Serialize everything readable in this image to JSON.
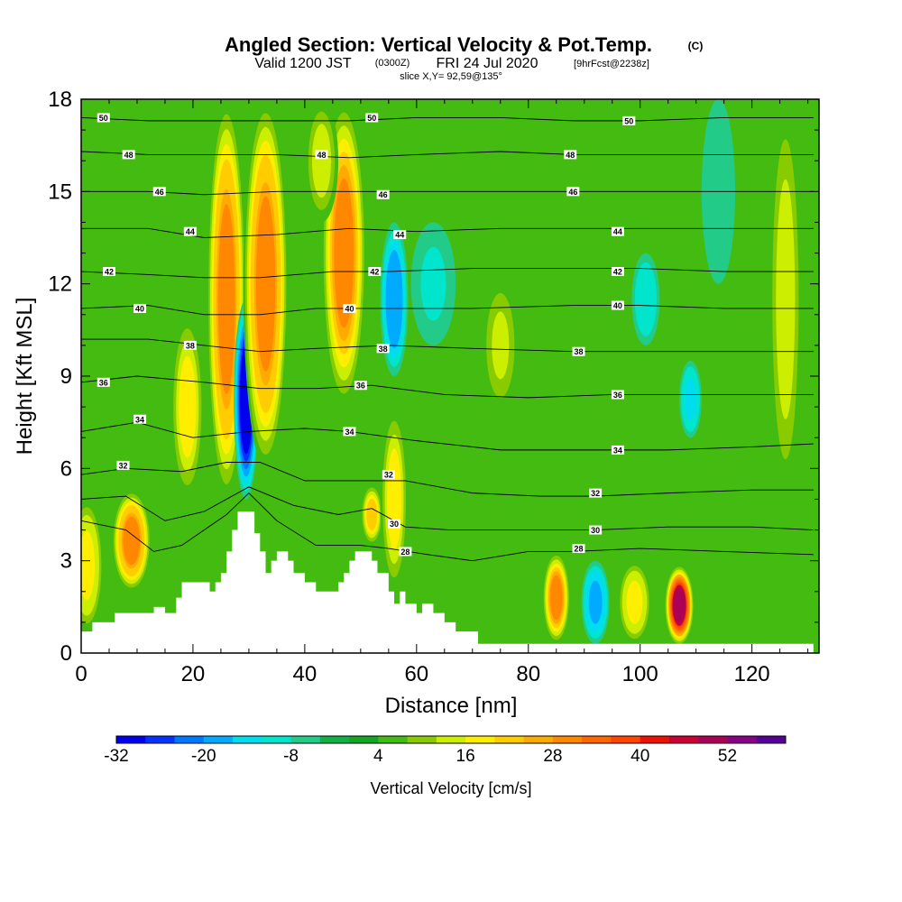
{
  "chart_data": {
    "type": "heatmap",
    "title": "Angled Section: Vertical Velocity & Pot.Temp.",
    "title_unit": "(C)",
    "subtitle_parts": [
      "Valid 1200 JST",
      "(0300Z)",
      "FRI 24 Jul 2020",
      "[9hrFcst@2238z]"
    ],
    "slice_label": "slice X,Y= 92,59@135°",
    "xlabel": "Distance [nm]",
    "ylabel": "Height [Kft MSL]",
    "xlim": [
      0,
      132
    ],
    "ylim": [
      0,
      18
    ],
    "x_ticks": [
      "0",
      "20",
      "40",
      "60",
      "80",
      "100",
      "120"
    ],
    "y_ticks": [
      "0",
      "3",
      "6",
      "9",
      "12",
      "15",
      "18"
    ],
    "grid": false,
    "colorbar": {
      "title": "Vertical Velocity [cm/s]",
      "levels": [
        -32,
        -28,
        -24,
        -20,
        -16,
        -12,
        -8,
        -4,
        0,
        4,
        8,
        12,
        16,
        20,
        24,
        28,
        32,
        36,
        40,
        44,
        48,
        52,
        56
      ],
      "colors": [
        "#0000ee",
        "#0033ff",
        "#0077ff",
        "#00aaff",
        "#00ddee",
        "#00e5cc",
        "#22cc88",
        "#11b044",
        "#11a722",
        "#44bb11",
        "#88cc00",
        "#ccee00",
        "#ffee00",
        "#ffcc00",
        "#ffaa00",
        "#ff8800",
        "#ff6600",
        "#ff4400",
        "#ee1100",
        "#cc0033",
        "#aa0055",
        "#880088",
        "#550099"
      ],
      "tick_labels": [
        "-32",
        "-20",
        "-8",
        "4",
        "16",
        "28",
        "40",
        "52"
      ],
      "tick_values": [
        -32,
        -20,
        -8,
        4,
        16,
        28,
        40,
        52
      ]
    },
    "vertical_velocity_columns": [
      {
        "x": 1,
        "peak": 18,
        "base": 0.7,
        "top": 5,
        "width": 3
      },
      {
        "x": 9,
        "peak": 30,
        "base": 2,
        "top": 5.3,
        "width": 3.5
      },
      {
        "x": 19,
        "peak": 16,
        "base": 5,
        "top": 11,
        "width": 3
      },
      {
        "x": 26,
        "peak": 30,
        "base": 5,
        "top": 18,
        "width": 3.5
      },
      {
        "x": 29.5,
        "peak": -32,
        "base": 5,
        "top": 11.5,
        "width": 2.2
      },
      {
        "x": 33,
        "peak": 30,
        "base": 6,
        "top": 18,
        "width": 4
      },
      {
        "x": 47,
        "peak": 28,
        "base": 8,
        "top": 18,
        "width": 4
      },
      {
        "x": 52,
        "peak": 20,
        "base": 3.5,
        "top": 5.5,
        "width": 2
      },
      {
        "x": 56,
        "peak": -20,
        "base": 9,
        "top": 14,
        "width": 2.5
      },
      {
        "x": 56,
        "peak": 16,
        "base": 2,
        "top": 8,
        "width": 2.5
      },
      {
        "x": 43,
        "peak": 12,
        "base": 14,
        "top": 18,
        "width": 3
      },
      {
        "x": 63,
        "peak": -10,
        "base": 10,
        "top": 14,
        "width": 4
      },
      {
        "x": 75,
        "peak": 14,
        "base": 8,
        "top": 12,
        "width": 3
      },
      {
        "x": 85,
        "peak": 28,
        "base": 0.3,
        "top": 3.3,
        "width": 2.5
      },
      {
        "x": 92,
        "peak": -18,
        "base": 0.3,
        "top": 3,
        "width": 2.5
      },
      {
        "x": 99,
        "peak": 18,
        "base": 0.3,
        "top": 3,
        "width": 3
      },
      {
        "x": 107,
        "peak": 50,
        "base": 0.3,
        "top": 2.8,
        "width": 2.5
      },
      {
        "x": 109,
        "peak": -14,
        "base": 7,
        "top": 9.5,
        "width": 2
      },
      {
        "x": 101,
        "peak": -12,
        "base": 10,
        "top": 13,
        "width": 2.5
      },
      {
        "x": 126,
        "peak": 12,
        "base": 5,
        "top": 18,
        "width": 3
      },
      {
        "x": 114,
        "peak": -8,
        "base": 12,
        "top": 18,
        "width": 3
      }
    ],
    "terrain": [
      [
        0,
        0.7
      ],
      [
        2,
        0.7
      ],
      [
        2,
        1
      ],
      [
        6,
        1
      ],
      [
        6,
        1.3
      ],
      [
        13,
        1.3
      ],
      [
        13,
        1.5
      ],
      [
        15,
        1.5
      ],
      [
        15,
        1.3
      ],
      [
        17,
        1.3
      ],
      [
        17,
        1.8
      ],
      [
        18,
        1.8
      ],
      [
        18,
        2.3
      ],
      [
        23,
        2.3
      ],
      [
        23,
        2.0
      ],
      [
        24,
        2.0
      ],
      [
        24,
        2.3
      ],
      [
        25,
        2.3
      ],
      [
        25,
        2.6
      ],
      [
        26,
        2.6
      ],
      [
        26,
        3.3
      ],
      [
        27,
        3.3
      ],
      [
        27,
        4.0
      ],
      [
        28,
        4.0
      ],
      [
        28,
        4.6
      ],
      [
        31,
        4.6
      ],
      [
        31,
        3.9
      ],
      [
        32,
        3.9
      ],
      [
        32,
        3.3
      ],
      [
        33,
        3.3
      ],
      [
        33,
        2.6
      ],
      [
        34,
        2.6
      ],
      [
        34,
        3.0
      ],
      [
        35,
        3.0
      ],
      [
        35,
        3.3
      ],
      [
        37,
        3.3
      ],
      [
        37,
        3.0
      ],
      [
        38,
        3.0
      ],
      [
        38,
        2.6
      ],
      [
        40,
        2.6
      ],
      [
        40,
        2.3
      ],
      [
        42,
        2.3
      ],
      [
        42,
        2.0
      ],
      [
        46,
        2.0
      ],
      [
        46,
        2.3
      ],
      [
        47,
        2.3
      ],
      [
        47,
        2.6
      ],
      [
        48,
        2.6
      ],
      [
        48,
        3.0
      ],
      [
        49,
        3.0
      ],
      [
        49,
        3.3
      ],
      [
        52,
        3.3
      ],
      [
        52,
        3.0
      ],
      [
        53,
        3.0
      ],
      [
        53,
        2.6
      ],
      [
        55,
        2.6
      ],
      [
        55,
        2.0
      ],
      [
        56,
        2.0
      ],
      [
        56,
        1.6
      ],
      [
        57,
        1.6
      ],
      [
        57,
        2.0
      ],
      [
        58,
        2.0
      ],
      [
        58,
        1.6
      ],
      [
        60,
        1.6
      ],
      [
        60,
        1.3
      ],
      [
        61,
        1.3
      ],
      [
        61,
        1.6
      ],
      [
        63,
        1.6
      ],
      [
        63,
        1.3
      ],
      [
        65,
        1.3
      ],
      [
        65,
        1.0
      ],
      [
        67,
        1.0
      ],
      [
        67,
        0.7
      ],
      [
        71,
        0.7
      ],
      [
        71,
        0.3
      ],
      [
        131,
        0.3
      ],
      [
        131,
        0
      ]
    ],
    "theta_contours": [
      {
        "value": 28,
        "points": [
          [
            0,
            4.3
          ],
          [
            8,
            4.0
          ],
          [
            13,
            3.3
          ],
          [
            18,
            3.5
          ],
          [
            26,
            4.5
          ],
          [
            30,
            5.2
          ],
          [
            35,
            4.3
          ],
          [
            42,
            3.5
          ],
          [
            50,
            3.5
          ],
          [
            55,
            3.4
          ],
          [
            62,
            3.2
          ],
          [
            70,
            3.0
          ],
          [
            80,
            3.3
          ],
          [
            88,
            3.3
          ],
          [
            100,
            3.4
          ],
          [
            115,
            3.3
          ],
          [
            131,
            3.2
          ]
        ]
      },
      {
        "value": 30,
        "points": [
          [
            0,
            5.0
          ],
          [
            8,
            5.1
          ],
          [
            15,
            4.3
          ],
          [
            22,
            4.6
          ],
          [
            30,
            5.4
          ],
          [
            38,
            4.8
          ],
          [
            46,
            4.5
          ],
          [
            52,
            4.7
          ],
          [
            58,
            4.1
          ],
          [
            66,
            4.0
          ],
          [
            80,
            4.0
          ],
          [
            92,
            4.0
          ],
          [
            105,
            4.1
          ],
          [
            120,
            4.1
          ],
          [
            131,
            4.0
          ]
        ]
      },
      {
        "value": 32,
        "points": [
          [
            0,
            5.8
          ],
          [
            8,
            6.0
          ],
          [
            18,
            5.9
          ],
          [
            26,
            6.2
          ],
          [
            32,
            6.2
          ],
          [
            40,
            5.6
          ],
          [
            50,
            5.6
          ],
          [
            58,
            5.6
          ],
          [
            70,
            5.2
          ],
          [
            82,
            5.1
          ],
          [
            92,
            5.1
          ],
          [
            105,
            5.2
          ],
          [
            120,
            5.3
          ],
          [
            131,
            5.3
          ]
        ]
      },
      {
        "value": 34,
        "points": [
          [
            0,
            7.2
          ],
          [
            10,
            7.5
          ],
          [
            20,
            7.0
          ],
          [
            30,
            7.2
          ],
          [
            40,
            7.3
          ],
          [
            48,
            7.2
          ],
          [
            60,
            6.9
          ],
          [
            75,
            6.6
          ],
          [
            90,
            6.6
          ],
          [
            105,
            6.6
          ],
          [
            120,
            6.7
          ],
          [
            131,
            6.8
          ]
        ]
      },
      {
        "value": 36,
        "points": [
          [
            0,
            8.8
          ],
          [
            10,
            9.0
          ],
          [
            22,
            8.8
          ],
          [
            32,
            8.6
          ],
          [
            42,
            8.6
          ],
          [
            52,
            8.7
          ],
          [
            65,
            8.4
          ],
          [
            80,
            8.3
          ],
          [
            95,
            8.4
          ],
          [
            110,
            8.4
          ],
          [
            131,
            8.4
          ]
        ]
      },
      {
        "value": 38,
        "points": [
          [
            0,
            10.2
          ],
          [
            12,
            10.2
          ],
          [
            22,
            10.0
          ],
          [
            32,
            9.8
          ],
          [
            42,
            9.9
          ],
          [
            55,
            10.0
          ],
          [
            70,
            9.9
          ],
          [
            88,
            9.8
          ],
          [
            100,
            9.8
          ],
          [
            115,
            9.8
          ],
          [
            131,
            9.8
          ]
        ]
      },
      {
        "value": 40,
        "points": [
          [
            0,
            11.2
          ],
          [
            12,
            11.3
          ],
          [
            22,
            11.0
          ],
          [
            32,
            11.0
          ],
          [
            42,
            11.2
          ],
          [
            55,
            11.2
          ],
          [
            70,
            11.2
          ],
          [
            88,
            11.3
          ],
          [
            100,
            11.3
          ],
          [
            115,
            11.2
          ],
          [
            131,
            11.2
          ]
        ]
      },
      {
        "value": 42,
        "points": [
          [
            0,
            12.4
          ],
          [
            12,
            12.3
          ],
          [
            22,
            12.2
          ],
          [
            32,
            12.2
          ],
          [
            45,
            12.4
          ],
          [
            55,
            12.4
          ],
          [
            70,
            12.5
          ],
          [
            88,
            12.5
          ],
          [
            100,
            12.5
          ],
          [
            115,
            12.4
          ],
          [
            131,
            12.4
          ]
        ]
      },
      {
        "value": 44,
        "points": [
          [
            0,
            13.8
          ],
          [
            12,
            13.8
          ],
          [
            22,
            13.5
          ],
          [
            35,
            13.6
          ],
          [
            48,
            13.8
          ],
          [
            60,
            13.7
          ],
          [
            75,
            13.8
          ],
          [
            88,
            13.8
          ],
          [
            100,
            13.8
          ],
          [
            115,
            13.8
          ],
          [
            131,
            13.8
          ]
        ]
      },
      {
        "value": 46,
        "points": [
          [
            0,
            15.0
          ],
          [
            12,
            15.0
          ],
          [
            22,
            14.9
          ],
          [
            35,
            15.0
          ],
          [
            48,
            15.0
          ],
          [
            60,
            15.0
          ],
          [
            75,
            15.0
          ],
          [
            88,
            15.0
          ],
          [
            100,
            15.0
          ],
          [
            115,
            15.0
          ],
          [
            131,
            15.0
          ]
        ]
      },
      {
        "value": 48,
        "points": [
          [
            0,
            16.3
          ],
          [
            12,
            16.2
          ],
          [
            22,
            16.2
          ],
          [
            35,
            16.2
          ],
          [
            48,
            16.1
          ],
          [
            60,
            16.2
          ],
          [
            75,
            16.3
          ],
          [
            88,
            16.2
          ],
          [
            100,
            16.2
          ],
          [
            115,
            16.2
          ],
          [
            131,
            16.2
          ]
        ]
      },
      {
        "value": 50,
        "points": [
          [
            0,
            17.4
          ],
          [
            12,
            17.3
          ],
          [
            22,
            17.3
          ],
          [
            35,
            17.3
          ],
          [
            48,
            17.3
          ],
          [
            60,
            17.4
          ],
          [
            75,
            17.4
          ],
          [
            88,
            17.3
          ],
          [
            100,
            17.3
          ],
          [
            115,
            17.4
          ],
          [
            131,
            17.4
          ]
        ]
      }
    ],
    "contour_labels": [
      {
        "text": "50",
        "x": 4,
        "y": 17.4
      },
      {
        "text": "50",
        "x": 52,
        "y": 17.4
      },
      {
        "text": "50",
        "x": 98,
        "y": 17.3
      },
      {
        "text": "48",
        "x": 8.5,
        "y": 16.2
      },
      {
        "text": "48",
        "x": 43,
        "y": 16.2
      },
      {
        "text": "48",
        "x": 87.5,
        "y": 16.2
      },
      {
        "text": "46",
        "x": 14,
        "y": 15.0
      },
      {
        "text": "46",
        "x": 54,
        "y": 14.9
      },
      {
        "text": "46",
        "x": 88,
        "y": 15.0
      },
      {
        "text": "44",
        "x": 19.5,
        "y": 13.7
      },
      {
        "text": "44",
        "x": 57,
        "y": 13.6
      },
      {
        "text": "44",
        "x": 96,
        "y": 13.7
      },
      {
        "text": "42",
        "x": 5,
        "y": 12.4
      },
      {
        "text": "42",
        "x": 52.5,
        "y": 12.4
      },
      {
        "text": "42",
        "x": 96,
        "y": 12.4
      },
      {
        "text": "40",
        "x": 10.5,
        "y": 11.2
      },
      {
        "text": "40",
        "x": 48,
        "y": 11.2
      },
      {
        "text": "40",
        "x": 96,
        "y": 11.3
      },
      {
        "text": "38",
        "x": 19.5,
        "y": 10.0
      },
      {
        "text": "38",
        "x": 54,
        "y": 9.9
      },
      {
        "text": "38",
        "x": 89,
        "y": 9.8
      },
      {
        "text": "36",
        "x": 4,
        "y": 8.8
      },
      {
        "text": "36",
        "x": 50,
        "y": 8.7
      },
      {
        "text": "36",
        "x": 96,
        "y": 8.4
      },
      {
        "text": "34",
        "x": 10.5,
        "y": 7.6
      },
      {
        "text": "34",
        "x": 48,
        "y": 7.2
      },
      {
        "text": "34",
        "x": 96,
        "y": 6.6
      },
      {
        "text": "32",
        "x": 7.5,
        "y": 6.1
      },
      {
        "text": "32",
        "x": 55,
        "y": 5.8
      },
      {
        "text": "32",
        "x": 92,
        "y": 5.2
      },
      {
        "text": "30",
        "x": 56,
        "y": 4.2
      },
      {
        "text": "30",
        "x": 92,
        "y": 4.0
      },
      {
        "text": "28",
        "x": 58,
        "y": 3.3
      },
      {
        "text": "28",
        "x": 89,
        "y": 3.4
      }
    ]
  }
}
